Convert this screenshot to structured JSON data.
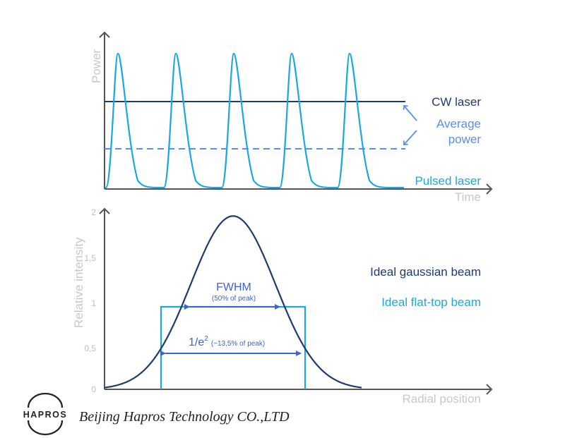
{
  "colors": {
    "navy": "#1e3a6e",
    "cyan": "#1aa8e0",
    "mid_blue": "#5b8ee6",
    "axis": "#555555",
    "gray_text": "#c8c8c8"
  },
  "top_chart": {
    "y_axis_title": "Power",
    "x_axis_title": "Time",
    "cw_label": "CW laser",
    "average_label_line1": "Average",
    "average_label_line2": "power",
    "pulsed_label": "Pulsed laser"
  },
  "bottom_chart": {
    "y_axis_title": "Relative intensity",
    "x_axis_title": "Radial position",
    "y_ticks": [
      "0",
      "0,5",
      "1",
      "1,5",
      "2"
    ],
    "gaussian_label": "Ideal gaussian beam",
    "flattop_label": "Ideal flat-top beam",
    "fwhm_label": "FWHM",
    "fwhm_sub": "(50% of peak)",
    "e2_label": "1/e",
    "e2_sup": "2",
    "e2_sub": "(~13,5% of peak)"
  },
  "footer": {
    "logo_text": "HAPROS",
    "company": "Beijing Hapros Technology CO.,LTD"
  },
  "chart_data": [
    {
      "type": "line",
      "ylabel": "Power",
      "xlabel": "Time",
      "series": [
        {
          "name": "CW laser",
          "style": "solid",
          "color": "#1e3a6e",
          "values": [
            1,
            1
          ]
        },
        {
          "name": "Pulsed laser",
          "style": "pulses",
          "color": "#1aa8e0",
          "pulse_count": 5,
          "peak_ratio_to_cw": 1.55
        }
      ],
      "annotations": [
        "Average power"
      ]
    },
    {
      "type": "line",
      "xlabel": "Radial position",
      "ylabel": "Relative intensity",
      "ylim": [
        0,
        2
      ],
      "y_ticks": [
        0,
        0.5,
        1,
        1.5,
        2
      ],
      "series": [
        {
          "name": "Ideal gaussian beam",
          "shape": "gaussian",
          "peak": 1.95,
          "color": "#1e3a6e"
        },
        {
          "name": "Ideal flat-top beam",
          "shape": "flat-top",
          "level": 0.97,
          "color": "#1aa8e0"
        }
      ],
      "annotations": [
        {
          "text": "FWHM (50% of peak)",
          "level": 0.97
        },
        {
          "text": "1/e2 (~13,5% of peak)",
          "level": 0.45
        }
      ]
    }
  ]
}
